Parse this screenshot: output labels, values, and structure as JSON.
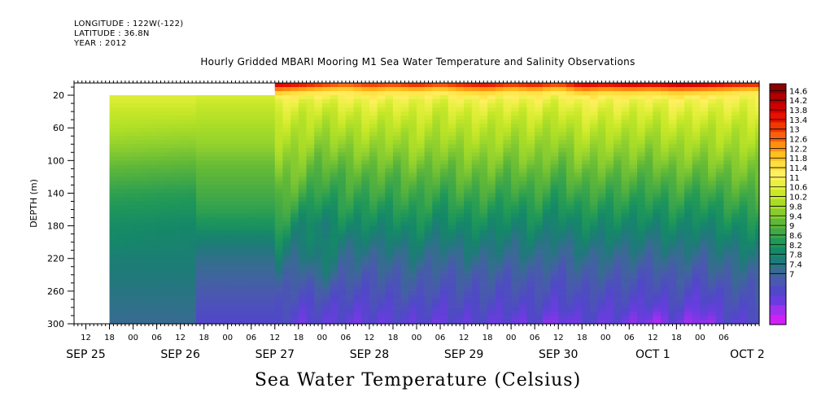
{
  "header": {
    "longitude": "LONGITUDE : 122W(-122)",
    "latitude": "LATITUDE : 36.8N",
    "year": "YEAR : 2012"
  },
  "title": "Hourly Gridded MBARI Mooring M1 Sea Water Temperature and Salinity Observations",
  "bottom_label": "Sea Water Temperature (Celsius)",
  "chart_data": {
    "type": "heatmap",
    "title": "Hourly Gridded MBARI Mooring M1 Sea Water Temperature and Salinity Observations",
    "ylabel": "DEPTH (m)",
    "xlabel": "",
    "colorbar_label": "Sea Water Temperature (Celsius)",
    "ylim": [
      300,
      5
    ],
    "y_ticks": [
      20,
      60,
      100,
      140,
      180,
      220,
      260,
      300
    ],
    "x_hour_ticks": [
      "12",
      "18",
      "00",
      "06",
      "12",
      "18",
      "00",
      "06",
      "12",
      "18",
      "00",
      "06",
      "12",
      "18",
      "00",
      "06",
      "12",
      "18",
      "00",
      "06",
      "12",
      "18",
      "00",
      "06",
      "12",
      "18",
      "00",
      "06"
    ],
    "x_day_labels": [
      "SEP 25",
      "SEP 26",
      "SEP 27",
      "SEP 28",
      "SEP 29",
      "SEP 30",
      "OCT  1",
      "OCT  2"
    ],
    "x_start_hour": 9,
    "x_end_hour": 183,
    "data_start_hour": 18,
    "gridded_start_hour": 60,
    "missing_shallow_until_hour": 60,
    "missing_shallow_depth": 20,
    "colorbar_levels": [
      "14.6",
      "14.2",
      "13.8",
      "13.4",
      "13",
      "12.6",
      "12.2",
      "11.8",
      "11.4",
      "11",
      "10.6",
      "10.2",
      "9.8",
      "9.4",
      "9",
      "8.6",
      "8.2",
      "7.8",
      "7.4",
      "7"
    ],
    "colorbar_colors": [
      "#8c0000",
      "#b00000",
      "#d00000",
      "#e81000",
      "#f03800",
      "#f86010",
      "#ff9010",
      "#ffc020",
      "#ffe040",
      "#fff060",
      "#e8f040",
      "#c8e828",
      "#a8dc28",
      "#88cc30",
      "#60b838",
      "#40a848",
      "#209858",
      "#158868",
      "#1f7a7a",
      "#3a6a94",
      "#4a58b0",
      "#5048c8",
      "#6a3ce0",
      "#a030f0",
      "#d020f8"
    ],
    "profile_depths": [
      5,
      15,
      25,
      40,
      60,
      80,
      100,
      120,
      140,
      160,
      180,
      200,
      220,
      240,
      260,
      280,
      300
    ],
    "profiles": [
      {
        "hour": 18,
        "temps": [
          11.3,
          11.3,
          11.3,
          11.1,
          10.9,
          10.6,
          10.3,
          10.0,
          9.7,
          9.5,
          9.3,
          9.2,
          9.0,
          8.9,
          8.8,
          8.7,
          8.6
        ]
      },
      {
        "hour": 40,
        "temps": [
          11.3,
          11.3,
          11.3,
          11.1,
          10.8,
          10.5,
          10.2,
          9.9,
          9.6,
          9.4,
          9.2,
          9.1,
          9.0,
          8.9,
          8.8,
          8.7,
          8.6
        ]
      },
      {
        "hour": 41,
        "temps": [
          11.3,
          11.3,
          11.2,
          11.0,
          10.8,
          10.6,
          10.3,
          10.1,
          9.9,
          9.7,
          9.4,
          9.0,
          8.7,
          8.5,
          8.3,
          8.1,
          7.9
        ]
      },
      {
        "hour": 60,
        "temps": [
          11.3,
          11.3,
          11.2,
          11.0,
          10.8,
          10.6,
          10.3,
          10.1,
          9.9,
          9.7,
          9.4,
          9.0,
          8.7,
          8.5,
          8.3,
          8.1,
          7.9
        ]
      },
      {
        "hour": 61,
        "temps": [
          14.2,
          12.4,
          11.6,
          11.3,
          11.0,
          10.8,
          10.6,
          10.4,
          10.2,
          10.0,
          9.7,
          9.3,
          9.0,
          8.7,
          8.4,
          8.2,
          8.0
        ]
      },
      {
        "hour": 66,
        "temps": [
          14.0,
          12.2,
          11.5,
          11.2,
          11.0,
          10.8,
          10.5,
          10.3,
          10.0,
          9.6,
          9.2,
          8.9,
          8.6,
          8.3,
          8.1,
          7.9,
          7.7
        ]
      },
      {
        "hour": 72,
        "temps": [
          13.6,
          12.0,
          11.4,
          11.1,
          10.8,
          10.5,
          10.2,
          9.9,
          9.6,
          9.3,
          9.0,
          9.2,
          9.1,
          8.8,
          8.3,
          8.0,
          7.8
        ]
      },
      {
        "hour": 78,
        "temps": [
          13.2,
          11.9,
          11.5,
          11.2,
          10.9,
          10.6,
          10.3,
          10.0,
          9.8,
          9.6,
          9.3,
          8.9,
          8.6,
          8.4,
          8.1,
          7.9,
          7.7
        ]
      },
      {
        "hour": 84,
        "temps": [
          13.6,
          12.2,
          11.6,
          11.3,
          11.0,
          10.7,
          10.4,
          10.1,
          9.8,
          9.5,
          9.2,
          8.9,
          8.6,
          8.3,
          8.1,
          7.9,
          7.7
        ]
      },
      {
        "hour": 90,
        "temps": [
          13.4,
          12.0,
          11.5,
          11.2,
          10.9,
          10.6,
          10.3,
          10.0,
          9.8,
          9.5,
          9.2,
          8.9,
          8.6,
          8.4,
          8.2,
          8.0,
          7.8
        ]
      },
      {
        "hour": 96,
        "temps": [
          13.8,
          12.1,
          11.5,
          11.3,
          11.0,
          10.8,
          10.5,
          10.2,
          9.9,
          9.7,
          9.4,
          9.1,
          8.8,
          8.5,
          8.3,
          8.0,
          7.8
        ]
      },
      {
        "hour": 102,
        "temps": [
          13.4,
          11.9,
          11.4,
          11.1,
          10.9,
          10.6,
          10.3,
          10.0,
          9.7,
          9.4,
          9.1,
          8.8,
          8.5,
          8.3,
          8.1,
          7.9,
          7.7
        ]
      },
      {
        "hour": 108,
        "temps": [
          13.8,
          12.2,
          11.6,
          11.3,
          11.0,
          10.7,
          10.4,
          10.2,
          9.9,
          9.6,
          9.3,
          9.0,
          8.7,
          8.4,
          8.2,
          8.0,
          7.8
        ]
      },
      {
        "hour": 114,
        "temps": [
          14.0,
          12.3,
          11.6,
          11.3,
          11.0,
          10.8,
          10.5,
          10.2,
          9.9,
          9.6,
          9.3,
          9.0,
          8.7,
          8.4,
          8.2,
          8.0,
          7.8
        ]
      },
      {
        "hour": 120,
        "temps": [
          13.6,
          12.0,
          11.5,
          11.2,
          10.9,
          10.6,
          10.3,
          10.0,
          9.7,
          9.4,
          9.1,
          8.8,
          8.6,
          8.3,
          8.1,
          7.9,
          7.6
        ]
      },
      {
        "hour": 126,
        "temps": [
          13.9,
          12.2,
          11.6,
          11.3,
          11.0,
          10.7,
          10.5,
          10.2,
          9.9,
          9.6,
          9.3,
          9.0,
          8.7,
          8.4,
          8.2,
          8.0,
          7.8
        ]
      },
      {
        "hour": 132,
        "temps": [
          13.4,
          11.9,
          11.4,
          11.1,
          10.8,
          10.5,
          10.2,
          9.9,
          9.6,
          9.3,
          9.0,
          8.7,
          8.5,
          8.2,
          8.0,
          7.8,
          7.4
        ]
      },
      {
        "hour": 138,
        "temps": [
          14.2,
          12.4,
          11.7,
          11.4,
          11.1,
          10.8,
          10.5,
          10.2,
          9.9,
          9.6,
          9.3,
          9.0,
          8.7,
          8.4,
          8.2,
          8.0,
          7.8
        ]
      },
      {
        "hour": 144,
        "temps": [
          14.0,
          12.2,
          11.6,
          11.3,
          11.0,
          10.7,
          10.4,
          10.1,
          9.8,
          9.5,
          9.2,
          8.9,
          8.6,
          8.4,
          8.1,
          7.9,
          7.7
        ]
      },
      {
        "hour": 150,
        "temps": [
          14.3,
          12.3,
          11.6,
          11.3,
          11.0,
          10.7,
          10.4,
          10.1,
          9.8,
          9.5,
          9.2,
          8.9,
          8.6,
          8.3,
          8.1,
          7.9,
          7.6
        ]
      },
      {
        "hour": 156,
        "temps": [
          14.1,
          12.2,
          11.5,
          11.2,
          10.9,
          10.6,
          10.3,
          10.0,
          9.7,
          9.4,
          9.1,
          8.8,
          8.5,
          8.2,
          8.0,
          7.7,
          7.3
        ]
      },
      {
        "hour": 162,
        "temps": [
          14.4,
          12.4,
          11.7,
          11.4,
          11.1,
          10.8,
          10.5,
          10.2,
          9.9,
          9.6,
          9.3,
          9.0,
          8.7,
          8.4,
          8.2,
          8.0,
          7.7
        ]
      },
      {
        "hour": 168,
        "temps": [
          14.3,
          12.3,
          11.6,
          11.3,
          11.0,
          10.7,
          10.4,
          10.1,
          9.7,
          9.4,
          9.1,
          8.8,
          8.5,
          8.2,
          7.9,
          7.6,
          7.2
        ]
      },
      {
        "hour": 174,
        "temps": [
          14.0,
          12.2,
          11.6,
          11.3,
          11.0,
          10.8,
          10.5,
          10.2,
          9.9,
          9.6,
          9.3,
          9.0,
          8.7,
          8.5,
          8.2,
          8.0,
          7.8
        ]
      },
      {
        "hour": 180,
        "temps": [
          13.8,
          12.0,
          11.5,
          11.3,
          11.0,
          10.8,
          10.5,
          10.3,
          10.0,
          9.7,
          9.4,
          9.1,
          8.8,
          8.5,
          8.3,
          8.1,
          7.9
        ]
      }
    ]
  }
}
